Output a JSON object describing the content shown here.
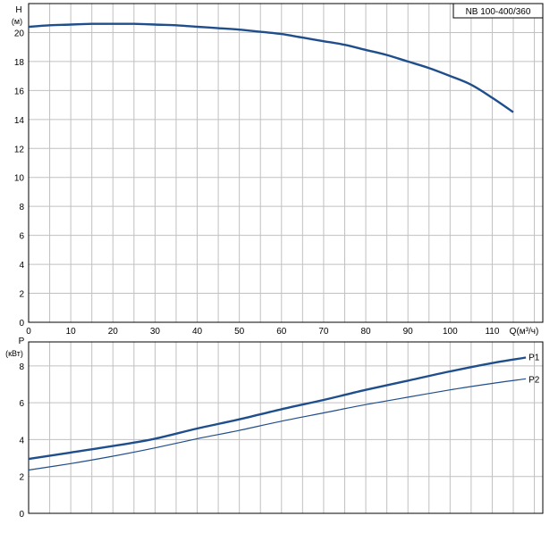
{
  "chart_data": [
    {
      "type": "line",
      "model_label": "NB 100-400/360",
      "ylabel_top": "H",
      "ylabel_unit": "(м)",
      "xlabel": "Q(м³/ч)",
      "xlim": [
        0,
        122
      ],
      "ylim": [
        0,
        22
      ],
      "x_ticks": [
        0,
        10,
        20,
        30,
        40,
        50,
        60,
        70,
        80,
        90,
        100,
        110
      ],
      "y_ticks": [
        0,
        2,
        4,
        6,
        8,
        10,
        12,
        14,
        16,
        18,
        20
      ],
      "grid": true,
      "series": [
        {
          "x": [
            0,
            5,
            10,
            15,
            20,
            25,
            30,
            35,
            40,
            45,
            50,
            55,
            60,
            65,
            70,
            75,
            80,
            85,
            90,
            95,
            100,
            105,
            110,
            115
          ],
          "y": [
            20.4,
            20.5,
            20.55,
            20.6,
            20.6,
            20.6,
            20.55,
            20.5,
            20.4,
            20.3,
            20.2,
            20.05,
            19.9,
            19.65,
            19.4,
            19.15,
            18.8,
            18.45,
            18.0,
            17.55,
            17.0,
            16.4,
            15.5,
            14.5
          ]
        }
      ],
      "colors": {
        "curve": "#1f4e8c",
        "grid": "#c0c0c0"
      }
    },
    {
      "type": "line",
      "ylabel_top": "P",
      "ylabel_unit": "(кВт)",
      "xlim": [
        0,
        122
      ],
      "ylim": [
        0,
        9.3
      ],
      "y_ticks": [
        0,
        2,
        4,
        6,
        8
      ],
      "grid": true,
      "series": [
        {
          "name": "P1",
          "x": [
            0,
            10,
            20,
            30,
            40,
            50,
            60,
            70,
            80,
            90,
            100,
            110,
            118
          ],
          "y": [
            2.95,
            3.3,
            3.65,
            4.05,
            4.6,
            5.1,
            5.65,
            6.15,
            6.7,
            7.2,
            7.7,
            8.15,
            8.45
          ]
        },
        {
          "name": "P2",
          "x": [
            0,
            10,
            20,
            30,
            40,
            50,
            60,
            70,
            80,
            90,
            100,
            110,
            118
          ],
          "y": [
            2.35,
            2.7,
            3.1,
            3.55,
            4.05,
            4.5,
            5.0,
            5.45,
            5.9,
            6.3,
            6.7,
            7.05,
            7.3
          ]
        }
      ],
      "colors": {
        "P1": "#1f4e8c",
        "P2": "#1f4e8c",
        "grid": "#c0c0c0"
      }
    }
  ]
}
